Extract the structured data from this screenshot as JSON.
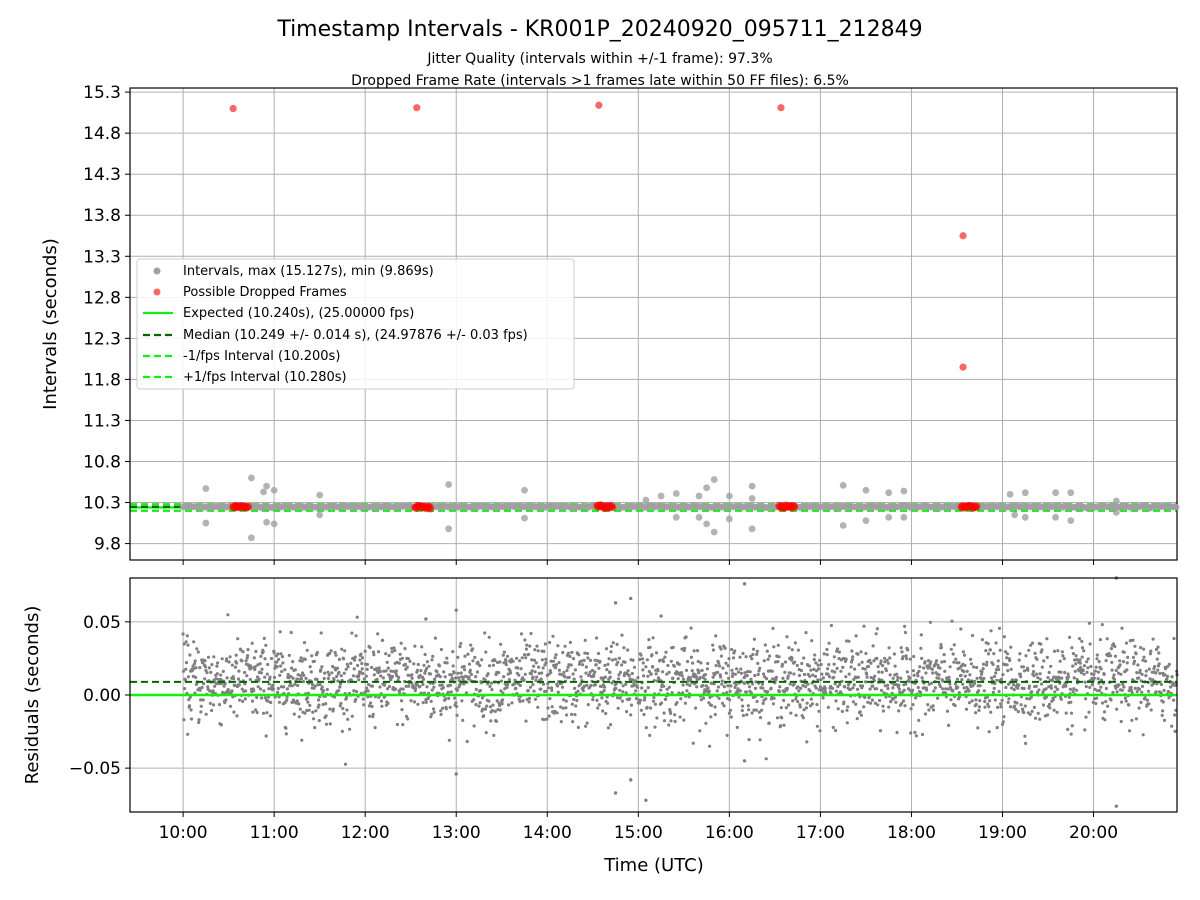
{
  "title": "Timestamp Intervals - KR001P_20240920_095711_212849",
  "subtitle_lines": [
    "Jitter Quality (intervals within +/-1 frame): 97.3%",
    "Dropped Frame Rate (intervals >1 frames late within 50 FF files): 6.5%"
  ],
  "colors": {
    "intervals": "#a0a0a0",
    "dropped": "#ff0000",
    "expected": "#11ee11",
    "median": "#006400",
    "band": "#11ee11",
    "residuals": "#808080",
    "grid": "#b0b0b0"
  },
  "chart_data": [
    {
      "type": "scatter",
      "name": "top",
      "xlabel": "",
      "ylabel": "Intervals (seconds)",
      "xlim": [
        "09:25",
        "20:55"
      ],
      "ylim": [
        9.6,
        15.35
      ],
      "yticks": [
        "9.8",
        "10.3",
        "10.8",
        "11.3",
        "11.8",
        "12.3",
        "12.8",
        "13.3",
        "13.8",
        "14.3",
        "14.8",
        "15.3"
      ],
      "grid": true,
      "legend_position": "center-left",
      "legend": [
        "Intervals, max (15.127s), min (9.869s)",
        "Possible Dropped Frames",
        "Expected (10.240s), (25.00000 fps)",
        "Median (10.249 +/- 0.014 s), (24.97876 +/- 0.03 fps)",
        "-1/fps Interval (10.200s)",
        "+1/fps Interval (10.280s)"
      ],
      "lines": {
        "expected": 10.24,
        "median": 10.249,
        "minus_1fps": 10.2,
        "plus_1fps": 10.28
      },
      "intervals_max": 15.127,
      "intervals_min": 9.869,
      "dropped_points": [
        {
          "x": "10:33",
          "y": 15.1
        },
        {
          "x": "12:34",
          "y": 15.11
        },
        {
          "x": "14:34",
          "y": 15.14
        },
        {
          "x": "16:34",
          "y": 15.11
        },
        {
          "x": "18:34",
          "y": 13.55
        },
        {
          "x": "18:34",
          "y": 11.95
        }
      ],
      "dropped_clusters": [
        "10:38",
        "12:38",
        "14:38",
        "16:38",
        "18:38"
      ],
      "interval_outliers": [
        {
          "x": "10:15",
          "y": 10.47
        },
        {
          "x": "10:15",
          "y": 10.05
        },
        {
          "x": "10:45",
          "y": 10.6
        },
        {
          "x": "10:45",
          "y": 9.87
        },
        {
          "x": "10:55",
          "y": 10.5
        },
        {
          "x": "10:55",
          "y": 10.06
        },
        {
          "x": "10:53",
          "y": 10.43
        },
        {
          "x": "11:00",
          "y": 10.45
        },
        {
          "x": "11:00",
          "y": 10.04
        },
        {
          "x": "11:30",
          "y": 10.39
        },
        {
          "x": "11:30",
          "y": 10.15
        },
        {
          "x": "12:55",
          "y": 10.52
        },
        {
          "x": "12:55",
          "y": 9.98
        },
        {
          "x": "13:45",
          "y": 10.45
        },
        {
          "x": "13:45",
          "y": 10.11
        },
        {
          "x": "15:05",
          "y": 10.33
        },
        {
          "x": "15:15",
          "y": 10.38
        },
        {
          "x": "15:25",
          "y": 10.41
        },
        {
          "x": "15:25",
          "y": 10.12
        },
        {
          "x": "15:40",
          "y": 10.38
        },
        {
          "x": "15:40",
          "y": 10.12
        },
        {
          "x": "15:45",
          "y": 10.48
        },
        {
          "x": "15:50",
          "y": 10.58
        },
        {
          "x": "15:50",
          "y": 9.94
        },
        {
          "x": "15:45",
          "y": 10.04
        },
        {
          "x": "16:00",
          "y": 10.38
        },
        {
          "x": "16:00",
          "y": 10.1
        },
        {
          "x": "16:15",
          "y": 10.5
        },
        {
          "x": "16:15",
          "y": 10.35
        },
        {
          "x": "16:15",
          "y": 9.98
        },
        {
          "x": "17:15",
          "y": 10.51
        },
        {
          "x": "17:15",
          "y": 10.02
        },
        {
          "x": "17:30",
          "y": 10.45
        },
        {
          "x": "17:30",
          "y": 10.08
        },
        {
          "x": "17:45",
          "y": 10.42
        },
        {
          "x": "17:45",
          "y": 10.12
        },
        {
          "x": "17:55",
          "y": 10.44
        },
        {
          "x": "17:55",
          "y": 10.12
        },
        {
          "x": "19:05",
          "y": 10.4
        },
        {
          "x": "19:08",
          "y": 10.15
        },
        {
          "x": "19:15",
          "y": 10.42
        },
        {
          "x": "19:15",
          "y": 10.12
        },
        {
          "x": "19:35",
          "y": 10.42
        },
        {
          "x": "19:35",
          "y": 10.12
        },
        {
          "x": "19:45",
          "y": 10.42
        },
        {
          "x": "19:45",
          "y": 10.08
        },
        {
          "x": "20:15",
          "y": 10.32
        },
        {
          "x": "20:15",
          "y": 10.18
        }
      ]
    },
    {
      "type": "scatter",
      "name": "bottom",
      "xlabel": "Time (UTC)",
      "ylabel": "Residuals (seconds)",
      "xlim": [
        "09:25",
        "20:55"
      ],
      "ylim": [
        -0.08,
        0.08
      ],
      "xticks": [
        "10:00",
        "11:00",
        "12:00",
        "13:00",
        "14:00",
        "15:00",
        "16:00",
        "17:00",
        "18:00",
        "19:00",
        "20:00"
      ],
      "yticks": [
        "0.05",
        "0.00",
        "−0.05"
      ],
      "yticks_values": [
        0.05,
        0.0,
        -0.05
      ],
      "grid": true,
      "lines": {
        "zero": 0.0,
        "median_residual": 0.009
      },
      "residual_spread": 0.014,
      "residual_range": [
        "10:00",
        "20:55"
      ],
      "residual_outliers": [
        {
          "x": "12:40",
          "y": 0.052
        },
        {
          "x": "13:00",
          "y": 0.058
        },
        {
          "x": "13:00",
          "y": -0.054
        },
        {
          "x": "14:45",
          "y": 0.063
        },
        {
          "x": "14:55",
          "y": 0.066
        },
        {
          "x": "15:15",
          "y": 0.054
        },
        {
          "x": "14:45",
          "y": -0.067
        },
        {
          "x": "14:55",
          "y": -0.058
        },
        {
          "x": "15:05",
          "y": -0.072
        },
        {
          "x": "16:10",
          "y": 0.076
        },
        {
          "x": "16:10",
          "y": -0.045
        },
        {
          "x": "20:15",
          "y": 0.08
        },
        {
          "x": "20:15",
          "y": -0.076
        }
      ]
    }
  ]
}
